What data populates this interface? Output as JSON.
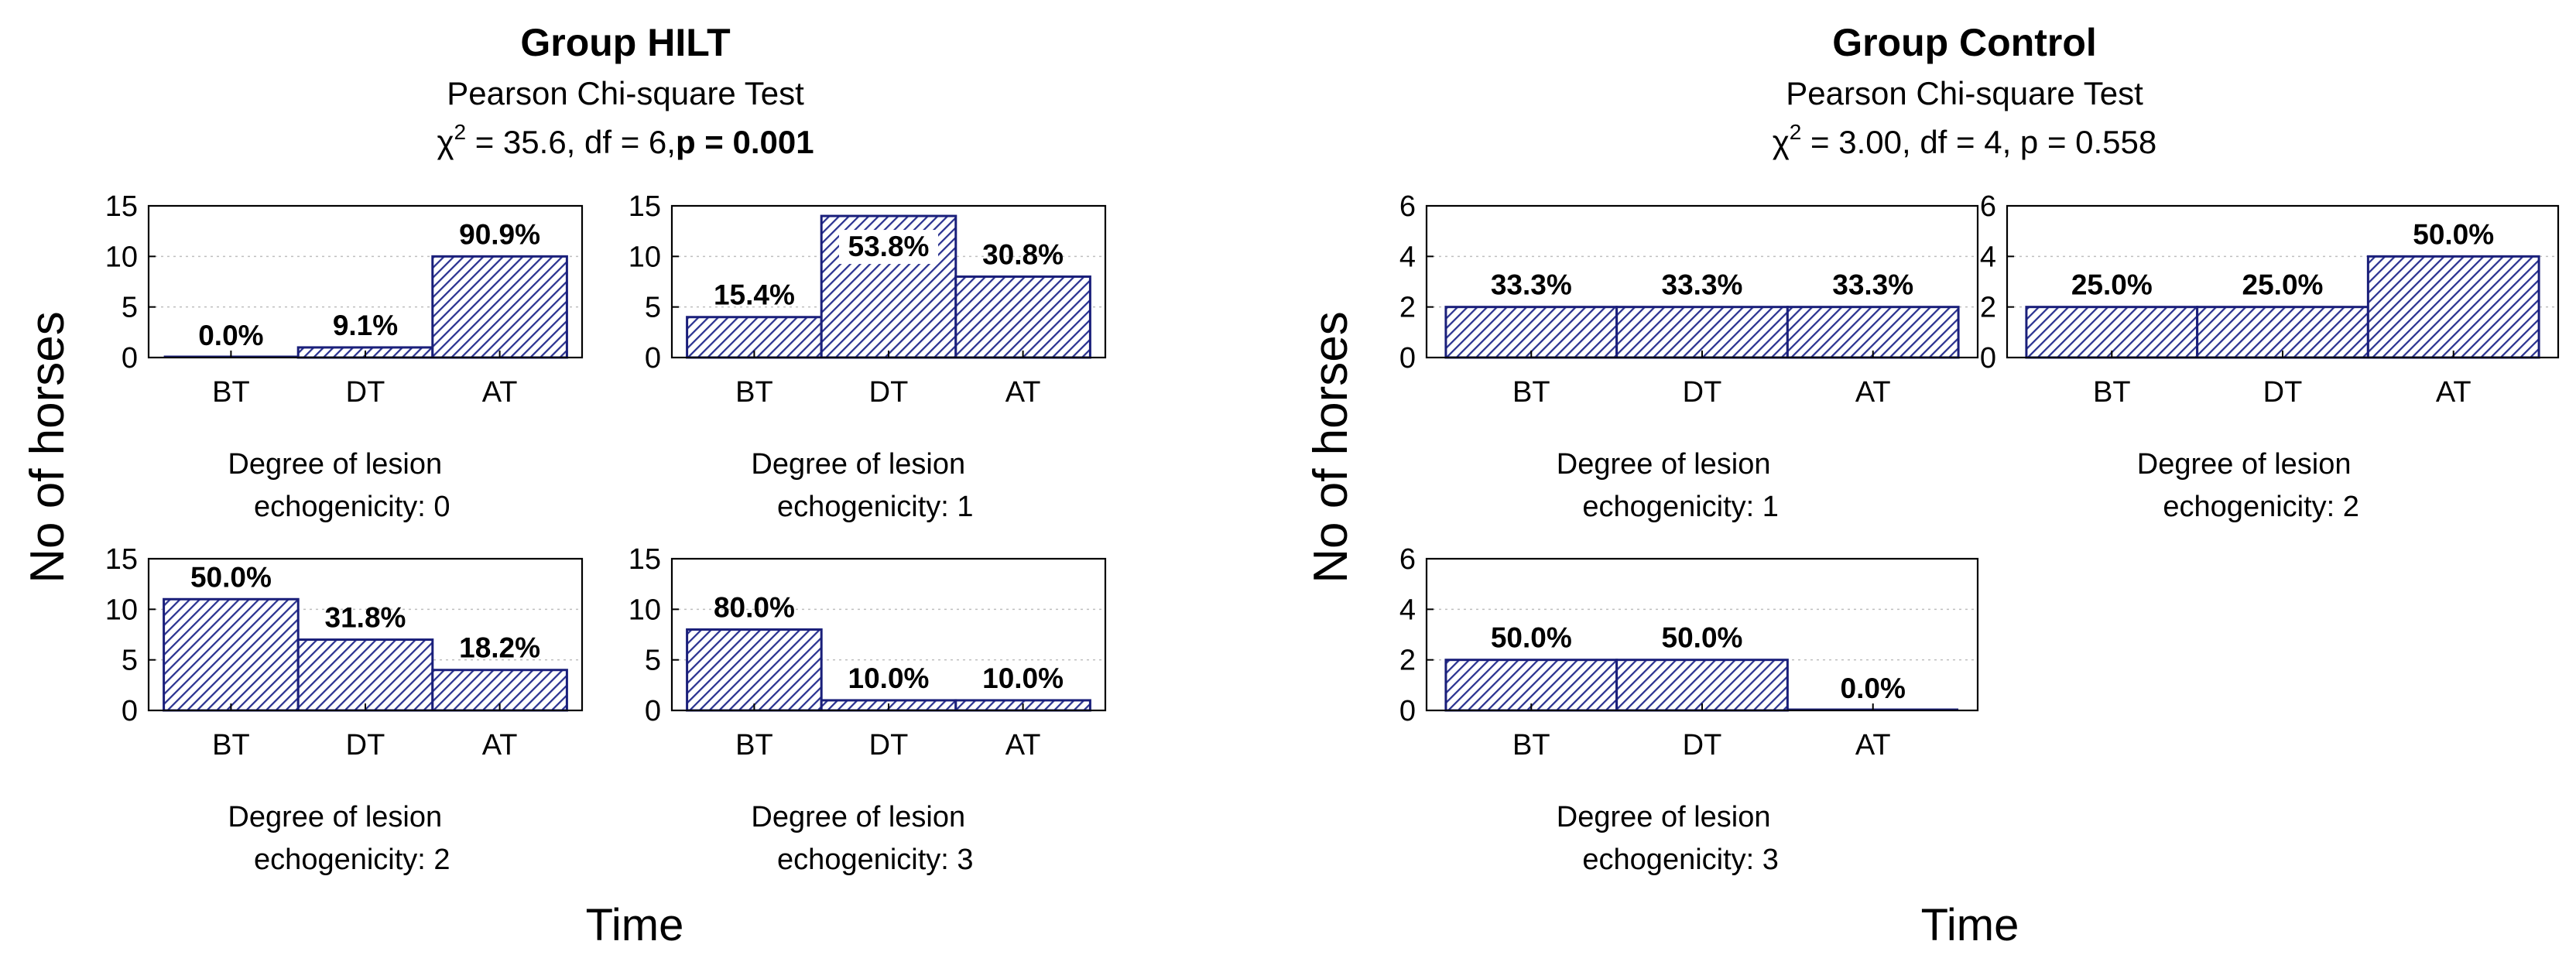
{
  "groups": [
    {
      "title": "Group HILT",
      "test_name": "Pearson Chi-square Test",
      "stat": {
        "chi_symbol": "χ",
        "power": "2",
        "chi_text": " = 35.6, df = 6,",
        "p_text": "p = 0.001",
        "p_bold": true
      },
      "ylabel": "No of horses",
      "xlabel": "Time"
    },
    {
      "title": "Group Control",
      "test_name": "Pearson Chi-square Test",
      "stat": {
        "chi_symbol": "χ",
        "power": "2",
        "chi_text": " = 3.00, df = 4, ",
        "p_text": "p = 0.558",
        "p_bold": false
      },
      "ylabel": "No of horses",
      "xlabel": "Time"
    }
  ],
  "colors": {
    "bar_stroke": "#1a1f7a",
    "hatch": "#2a3290",
    "axis": "#000000",
    "grid": "#bfbfbf"
  },
  "chart_data": [
    {
      "type": "bar",
      "group": "Group HILT",
      "caption": [
        "Degree of lesion",
        "echogenicity: 0"
      ],
      "categories": [
        "BT",
        "DT",
        "AT"
      ],
      "values": [
        0,
        1,
        10
      ],
      "labels": [
        "0.0%",
        "9.1%",
        "90.9%"
      ],
      "yticks": [
        0,
        5,
        10,
        15
      ],
      "ylim": [
        0,
        15
      ],
      "xlabel": "Time",
      "ylabel": "No of horses"
    },
    {
      "type": "bar",
      "group": "Group HILT",
      "caption": [
        "Degree of lesion",
        "echogenicity: 1"
      ],
      "categories": [
        "BT",
        "DT",
        "AT"
      ],
      "values": [
        4,
        14,
        8
      ],
      "labels": [
        "15.4%",
        "53.8%",
        "30.8%"
      ],
      "yticks": [
        0,
        5,
        10,
        15
      ],
      "ylim": [
        0,
        15
      ],
      "xlabel": "Time",
      "ylabel": "No of horses"
    },
    {
      "type": "bar",
      "group": "Group HILT",
      "caption": [
        "Degree of lesion",
        "echogenicity: 2"
      ],
      "categories": [
        "BT",
        "DT",
        "AT"
      ],
      "values": [
        11,
        7,
        4
      ],
      "labels": [
        "50.0%",
        "31.8%",
        "18.2%"
      ],
      "yticks": [
        0,
        5,
        10,
        15
      ],
      "ylim": [
        0,
        15
      ],
      "xlabel": "Time",
      "ylabel": "No of horses"
    },
    {
      "type": "bar",
      "group": "Group HILT",
      "caption": [
        "Degree of lesion",
        "echogenicity: 3"
      ],
      "categories": [
        "BT",
        "DT",
        "AT"
      ],
      "values": [
        8,
        1,
        1
      ],
      "labels": [
        "80.0%",
        "10.0%",
        "10.0%"
      ],
      "yticks": [
        0,
        5,
        10,
        15
      ],
      "ylim": [
        0,
        15
      ],
      "xlabel": "Time",
      "ylabel": "No of horses"
    },
    {
      "type": "bar",
      "group": "Group Control",
      "caption": [
        "Degree of lesion",
        "echogenicity: 1"
      ],
      "categories": [
        "BT",
        "DT",
        "AT"
      ],
      "values": [
        2,
        2,
        2
      ],
      "labels": [
        "33.3%",
        "33.3%",
        "33.3%"
      ],
      "yticks": [
        0,
        2,
        4,
        6
      ],
      "ylim": [
        0,
        6
      ],
      "xlabel": "Time",
      "ylabel": "No of horses"
    },
    {
      "type": "bar",
      "group": "Group Control",
      "caption": [
        "Degree of lesion",
        "echogenicity: 2"
      ],
      "categories": [
        "BT",
        "DT",
        "AT"
      ],
      "values": [
        2,
        2,
        4
      ],
      "labels": [
        "25.0%",
        "25.0%",
        "50.0%"
      ],
      "yticks": [
        0,
        2,
        4,
        6
      ],
      "ylim": [
        0,
        6
      ],
      "xlabel": "Time",
      "ylabel": "No of horses"
    },
    {
      "type": "bar",
      "group": "Group Control",
      "caption": [
        "Degree of lesion",
        "echogenicity: 3"
      ],
      "categories": [
        "BT",
        "DT",
        "AT"
      ],
      "values": [
        2,
        2,
        0
      ],
      "labels": [
        "50.0%",
        "50.0%",
        "0.0%"
      ],
      "yticks": [
        0,
        2,
        4,
        6
      ],
      "ylim": [
        0,
        6
      ],
      "xlabel": "Time",
      "ylabel": "No of horses"
    }
  ]
}
